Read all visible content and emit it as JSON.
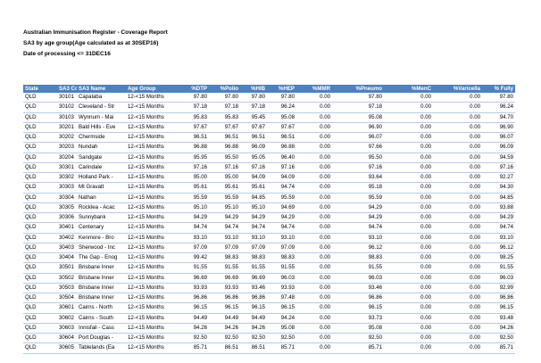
{
  "report": {
    "title": "Australian Immunisation Register - Coverage Report",
    "subtitle": "SA3 by age group(Age calculated as at 30SEP16)",
    "processing": "Date of processing <= 31DEC16"
  },
  "columns": [
    "State",
    "SA3 Code",
    "SA3 Name",
    "Age Group",
    "%DTP",
    "%Polio",
    "%HIB",
    "%HEP",
    "%MMR",
    "%Pneumo",
    "%MenC",
    "%Varicella",
    "% Fully"
  ],
  "rows": [
    [
      "QLD",
      "30101",
      "Capalaba",
      "12-<15 Months",
      "97.80",
      "97.80",
      "97.80",
      "97.80",
      "0.00",
      "97.80",
      "0.00",
      "0.00",
      "97.80"
    ],
    [
      "QLD",
      "30102",
      "Cleveland - Str",
      "12-<15 Months",
      "97.18",
      "97.18",
      "97.18",
      "96.24",
      "0.00",
      "97.18",
      "0.00",
      "0.00",
      "96.24"
    ],
    [
      "QLD",
      "30103",
      "Wynnum - Mai",
      "12-<15 Months",
      "95.83",
      "95.83",
      "95.45",
      "95.08",
      "0.00",
      "95.08",
      "0.00",
      "0.00",
      "94.70"
    ],
    [
      "QLD",
      "30201",
      "Bald Hills - Eve",
      "12-<15 Months",
      "97.67",
      "97.67",
      "97.67",
      "97.67",
      "0.00",
      "96.90",
      "0.00",
      "0.00",
      "96.90"
    ],
    [
      "QLD",
      "30202",
      "Chermside",
      "12-<15 Months",
      "96.51",
      "96.51",
      "96.51",
      "96.51",
      "0.00",
      "96.07",
      "0.00",
      "0.00",
      "96.07"
    ],
    [
      "QLD",
      "30203",
      "Nundah",
      "12-<15 Months",
      "96.88",
      "96.88",
      "96.09",
      "96.88",
      "0.00",
      "97.66",
      "0.00",
      "0.00",
      "96.09"
    ],
    [
      "QLD",
      "30204",
      "Sandgate",
      "12-<15 Months",
      "95.95",
      "95.50",
      "95.05",
      "96.40",
      "0.00",
      "95.50",
      "0.00",
      "0.00",
      "94.59"
    ],
    [
      "QLD",
      "30301",
      "Carindale",
      "12-<15 Months",
      "97.16",
      "97.16",
      "97.16",
      "97.16",
      "0.00",
      "97.16",
      "0.00",
      "0.00",
      "97.16"
    ],
    [
      "QLD",
      "30302",
      "Holland Park -",
      "12-<15 Months",
      "95.00",
      "95.00",
      "94.09",
      "94.09",
      "0.00",
      "93.64",
      "0.00",
      "0.00",
      "92.27"
    ],
    [
      "QLD",
      "30303",
      "Mt Gravatt",
      "12-<15 Months",
      "95.61",
      "95.61",
      "95.61",
      "94.74",
      "0.00",
      "95.18",
      "0.00",
      "0.00",
      "94.30"
    ],
    [
      "QLD",
      "30304",
      "Nathan",
      "12-<15 Months",
      "95.59",
      "95.59",
      "94.85",
      "95.59",
      "0.00",
      "95.59",
      "0.00",
      "0.00",
      "94.85"
    ],
    [
      "QLD",
      "30305",
      "Rocklea - Acac",
      "12-<15 Months",
      "95.10",
      "95.10",
      "95.10",
      "94.69",
      "0.00",
      "94.29",
      "0.00",
      "0.00",
      "93.88"
    ],
    [
      "QLD",
      "30306",
      "Sunnybank",
      "12-<15 Months",
      "94.29",
      "94.29",
      "94.29",
      "94.29",
      "0.00",
      "94.29",
      "0.00",
      "0.00",
      "94.29"
    ],
    [
      "QLD",
      "30401",
      "Centenary",
      "12-<15 Months",
      "94.74",
      "94.74",
      "94.74",
      "94.74",
      "0.00",
      "94.74",
      "0.00",
      "0.00",
      "94.74"
    ],
    [
      "QLD",
      "30402",
      "Kenmore - Bro",
      "12-<15 Months",
      "93.10",
      "93.10",
      "93.10",
      "93.10",
      "0.00",
      "93.10",
      "0.00",
      "0.00",
      "93.10"
    ],
    [
      "QLD",
      "30403",
      "Sherwood - Inc",
      "12-<15 Months",
      "97.09",
      "97.09",
      "97.09",
      "97.09",
      "0.00",
      "96.12",
      "0.00",
      "0.00",
      "96.12"
    ],
    [
      "QLD",
      "30404",
      "The Gap - Enog",
      "12-<15 Months",
      "99.42",
      "98.83",
      "98.83",
      "98.83",
      "0.00",
      "98.83",
      "0.00",
      "0.00",
      "98.25"
    ],
    [
      "QLD",
      "30501",
      "Brisbane Inner",
      "12-<15 Months",
      "91.55",
      "91.55",
      "91.55",
      "91.55",
      "0.00",
      "91.55",
      "0.00",
      "0.00",
      "91.55"
    ],
    [
      "QLD",
      "30502",
      "Brisbane Inner",
      "12-<15 Months",
      "96.69",
      "96.69",
      "96.69",
      "96.03",
      "0.00",
      "96.03",
      "0.00",
      "0.00",
      "96.03"
    ],
    [
      "QLD",
      "30503",
      "Brisbane Inner",
      "12-<15 Months",
      "93.93",
      "93.93",
      "93.46",
      "93.93",
      "0.00",
      "93.46",
      "0.00",
      "0.00",
      "92.99"
    ],
    [
      "QLD",
      "30504",
      "Brisbane Inner",
      "12-<15 Months",
      "96.86",
      "96.86",
      "96.86",
      "97.48",
      "0.00",
      "96.86",
      "0.00",
      "0.00",
      "96.86"
    ],
    [
      "QLD",
      "30601",
      "Cairns - North",
      "12-<15 Months",
      "96.15",
      "96.15",
      "96.15",
      "96.15",
      "0.00",
      "96.15",
      "0.00",
      "0.00",
      "96.15"
    ],
    [
      "QLD",
      "30602",
      "Cairns - South",
      "12-<15 Months",
      "94.49",
      "94.49",
      "94.49",
      "94.24",
      "0.00",
      "93.73",
      "0.00",
      "0.00",
      "93.48"
    ],
    [
      "QLD",
      "30603",
      "Innisfail - Cass",
      "12-<15 Months",
      "94.26",
      "94.26",
      "94.26",
      "95.08",
      "0.00",
      "95.08",
      "0.00",
      "0.00",
      "94.26"
    ],
    [
      "QLD",
      "30604",
      "Port Douglas -",
      "12-<15 Months",
      "92.50",
      "92.50",
      "92.50",
      "92.50",
      "0.00",
      "92.50",
      "0.00",
      "0.00",
      "92.50"
    ],
    [
      "QLD",
      "30605",
      "Tablelands (Ea",
      "12-<15 Months",
      "85.71",
      "86.51",
      "86.51",
      "85.71",
      "0.00",
      "85.71",
      "0.00",
      "0.00",
      "85.71"
    ]
  ]
}
